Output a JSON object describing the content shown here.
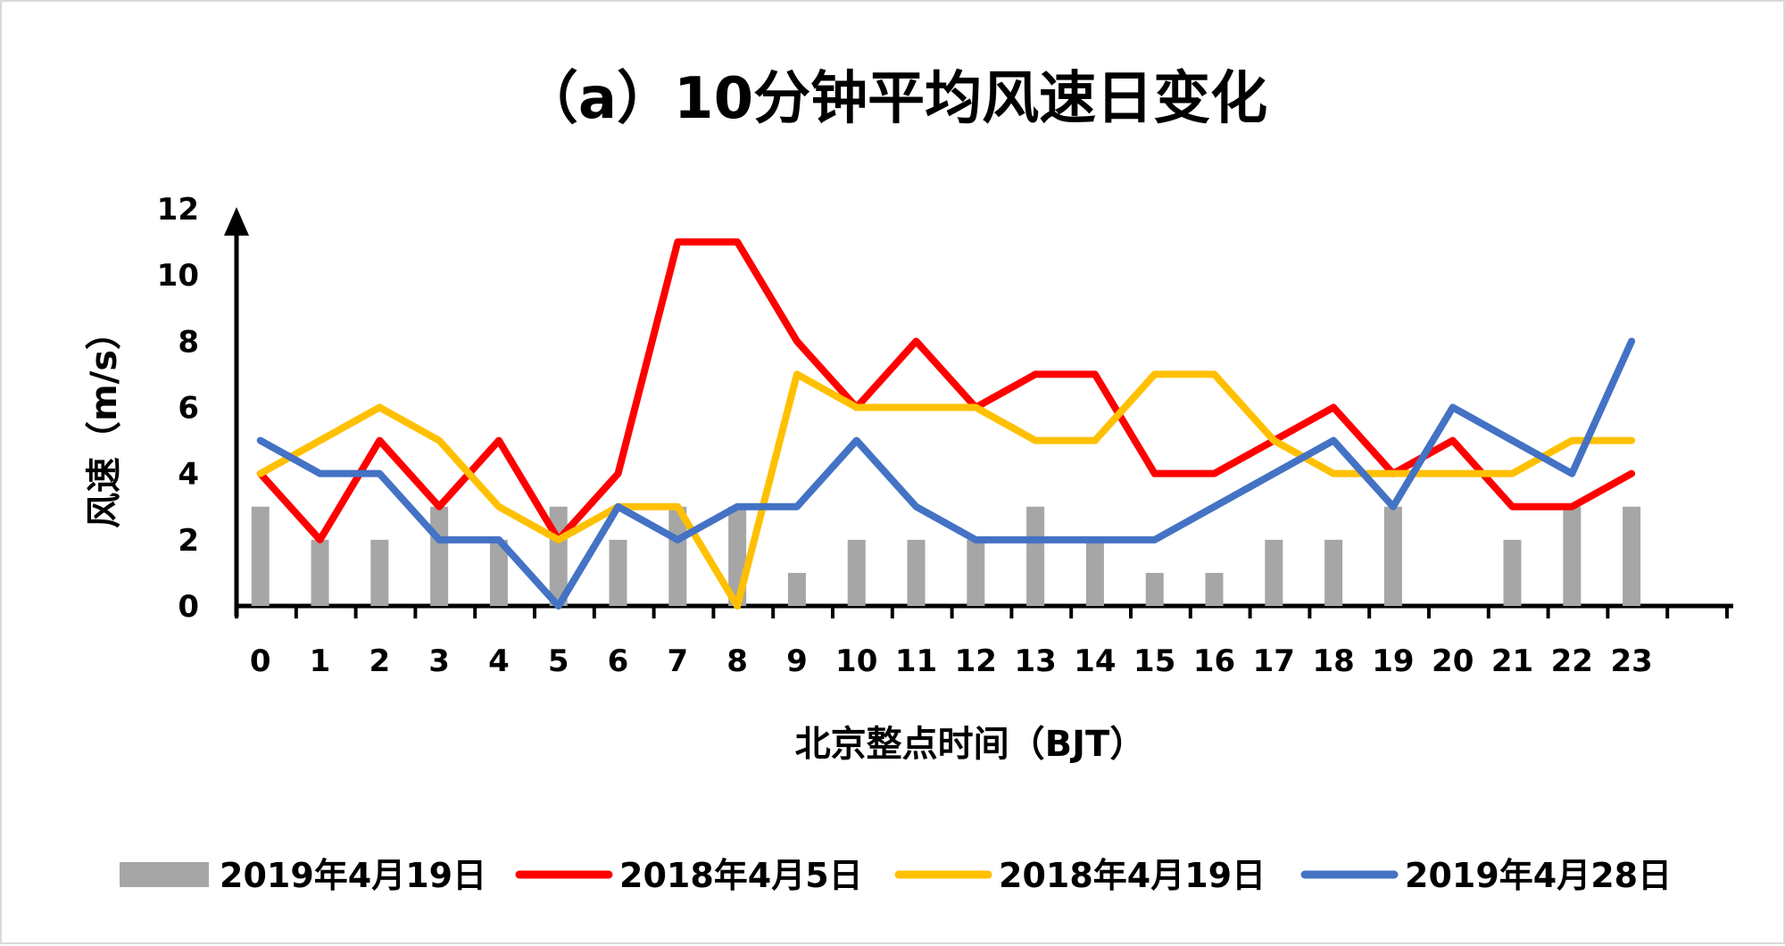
{
  "chart_data": {
    "type": "bar+line",
    "title": "（a）10分钟平均风速日变化",
    "xlabel": "北京整点时间（BJT）",
    "ylabel": "风速（m/s）",
    "ylim": [
      0,
      12
    ],
    "yticks": [
      0,
      2,
      4,
      6,
      8,
      10,
      12
    ],
    "categories": [
      "0",
      "1",
      "2",
      "3",
      "4",
      "5",
      "6",
      "7",
      "8",
      "9",
      "10",
      "11",
      "12",
      "13",
      "14",
      "15",
      "16",
      "17",
      "18",
      "19",
      "20",
      "21",
      "22",
      "23"
    ],
    "grid": false,
    "legend_position": "bottom",
    "series": [
      {
        "name": "2019年4月19日",
        "kind": "bar",
        "color": "#a6a6a6",
        "values": [
          3,
          2,
          2,
          3,
          2,
          3,
          2,
          3,
          3,
          1,
          2,
          2,
          2,
          3,
          2,
          1,
          1,
          2,
          2,
          3,
          0,
          2,
          3,
          3
        ]
      },
      {
        "name": "2018年4月5日",
        "kind": "line",
        "color": "#ff0000",
        "values": [
          4,
          2,
          5,
          3,
          5,
          2,
          4,
          11,
          11,
          8,
          6,
          8,
          6,
          7,
          7,
          4,
          4,
          5,
          6,
          4,
          5,
          3,
          3,
          4
        ]
      },
      {
        "name": "2018年4月19日",
        "kind": "line",
        "color": "#ffc000",
        "values": [
          4,
          5,
          6,
          5,
          3,
          2,
          3,
          3,
          0,
          7,
          6,
          6,
          6,
          5,
          5,
          7,
          7,
          5,
          4,
          4,
          4,
          4,
          5,
          5
        ]
      },
      {
        "name": "2019年4月28日",
        "kind": "line",
        "color": "#4472c4",
        "values": [
          5,
          4,
          4,
          2,
          2,
          0,
          3,
          2,
          3,
          3,
          5,
          3,
          2,
          2,
          2,
          2,
          3,
          4,
          5,
          3,
          6,
          5,
          4,
          8
        ]
      }
    ]
  }
}
